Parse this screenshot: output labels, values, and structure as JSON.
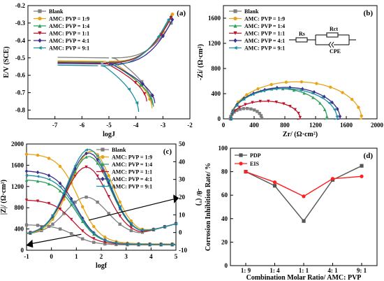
{
  "chart_data": [
    {
      "panel": "(a)",
      "type": "line",
      "xlabel": "logJ",
      "ylabel": "E/V (SCE)",
      "xlim": [
        -8,
        -2
      ],
      "ylim": [
        -0.85,
        -0.2
      ],
      "xticks": [
        "-7",
        "-6",
        "-5",
        "-4",
        "-3",
        "-2"
      ],
      "yticks": [
        "-0.2",
        "-0.3",
        "-0.4",
        "-0.5",
        "-0.6",
        "-0.7",
        "-0.8"
      ],
      "legend_position": "top-left",
      "series": [
        {
          "name": "Blank",
          "color": "#7f7f7f",
          "marker": "square",
          "Ecorr": -0.5,
          "minLogJ": -4.9,
          "anodic_end": [
            -2.7,
            -0.3
          ],
          "cathodic_end": [
            -3.4,
            -0.77
          ]
        },
        {
          "name": "AMC: PVP = 1:9",
          "color": "#e8a317",
          "marker": "circle",
          "Ecorr": -0.52,
          "minLogJ": -5.0,
          "anodic_end": [
            -2.65,
            -0.25
          ],
          "cathodic_end": [
            -3.4,
            -0.79
          ]
        },
        {
          "name": "AMC: PVP = 1:4",
          "color": "#2e9e5a",
          "marker": "triangle-up",
          "Ecorr": -0.525,
          "minLogJ": -5.1,
          "anodic_end": [
            -2.7,
            -0.26
          ],
          "cathodic_end": [
            -3.35,
            -0.78
          ]
        },
        {
          "name": "AMC: PVP = 1:1",
          "color": "#c0132a",
          "marker": "triangle-down",
          "Ecorr": -0.53,
          "minLogJ": -5.2,
          "anodic_end": [
            -2.7,
            -0.27
          ],
          "cathodic_end": [
            -3.6,
            -0.75
          ]
        },
        {
          "name": "AMC: PVP = 4:1",
          "color": "#3a2f8f",
          "marker": "diamond",
          "Ecorr": -0.535,
          "minLogJ": -5.0,
          "anodic_end": [
            -2.65,
            -0.28
          ],
          "cathodic_end": [
            -3.3,
            -0.76
          ]
        },
        {
          "name": "AMC: PVP = 9:1",
          "color": "#1f8fa0",
          "marker": "triangle-left",
          "Ecorr": -0.545,
          "minLogJ": -5.3,
          "anodic_end": [
            -2.8,
            -0.28
          ],
          "cathodic_end": [
            -3.9,
            -0.81
          ]
        }
      ]
    },
    {
      "panel": "(b)",
      "type": "line",
      "xlabel": "Zr/ (Ω·cm²)",
      "ylabel": "-Zi/ (Ω·cm²)",
      "xlim": [
        0,
        2000
      ],
      "ylim": [
        0,
        1800
      ],
      "xticks": [
        "0",
        "400",
        "800",
        "1200",
        "1600",
        "2000"
      ],
      "yticks": [
        "0",
        "400",
        "800",
        "1200",
        "1600"
      ],
      "legend_position": "top-left",
      "circuit_labels": [
        "Rs",
        "Rct",
        "CPE"
      ],
      "series": [
        {
          "name": "Blank",
          "color": "#7f7f7f",
          "marker": "square",
          "Rs": 90,
          "Rend": 500,
          "peak": 165
        },
        {
          "name": "AMC: PVP = 1:9",
          "color": "#e8a317",
          "marker": "circle",
          "Rs": 100,
          "Rend": 1800,
          "peak": 590
        },
        {
          "name": "AMC: PVP = 1:4",
          "color": "#2e9e5a",
          "marker": "triangle-up",
          "Rs": 100,
          "Rend": 1350,
          "peak": 480
        },
        {
          "name": "AMC: PVP = 1:1",
          "color": "#c0132a",
          "marker": "triangle-down",
          "Rs": 100,
          "Rend": 1000,
          "peak": 280
        },
        {
          "name": "AMC: PVP = 4:1",
          "color": "#3a2f8f",
          "marker": "diamond",
          "Rs": 100,
          "Rend": 1520,
          "peak": 500
        },
        {
          "name": "AMC: PVP = 9:1",
          "color": "#1f8fa0",
          "marker": "triangle-left",
          "Rs": 100,
          "Rend": 1480,
          "peak": 480
        }
      ]
    },
    {
      "panel": "(c)",
      "type": "line",
      "xlabel": "logf",
      "ylabel": "|Z|/ (Ω·cm²)",
      "ylabel_right": "-θ/ (°)",
      "xlim": [
        -1,
        5
      ],
      "ylim": [
        0,
        2000
      ],
      "ylim_right": [
        -10,
        50
      ],
      "xticks": [
        "-1",
        "0",
        "1",
        "2",
        "3",
        "4",
        "5"
      ],
      "yticks": [
        "0",
        "400",
        "800",
        "1200",
        "1600",
        "2000"
      ],
      "yticks_right": [
        "-10",
        "0",
        "10",
        "20",
        "30",
        "40",
        "50"
      ],
      "legend_position": "top-right",
      "series": [
        {
          "name": "Blank",
          "color": "#7f7f7f",
          "marker": "square",
          "Zlow": 480,
          "Zhigh": 100,
          "phasePeak": 20,
          "peakLogf": 1.4
        },
        {
          "name": "AMC: PVP = 1:9",
          "color": "#e8a317",
          "marker": "circle",
          "Zlow": 1820,
          "Zhigh": 120,
          "phasePeak": 46,
          "peakLogf": 1.6
        },
        {
          "name": "AMC: PVP = 1:4",
          "color": "#2e9e5a",
          "marker": "triangle-up",
          "Zlow": 1330,
          "Zhigh": 110,
          "phasePeak": 43,
          "peakLogf": 1.5
        },
        {
          "name": "AMC: PVP = 1:1",
          "color": "#c0132a",
          "marker": "triangle-down",
          "Zlow": 950,
          "Zhigh": 110,
          "phasePeak": 37,
          "peakLogf": 1.4
        },
        {
          "name": "AMC: PVP = 4:1",
          "color": "#3a2f8f",
          "marker": "diamond",
          "Zlow": 1500,
          "Zhigh": 110,
          "phasePeak": 45,
          "peakLogf": 1.5
        },
        {
          "name": "AMC: PVP = 9:1",
          "color": "#1f8fa0",
          "marker": "triangle-left",
          "Zlow": 1420,
          "Zhigh": 110,
          "phasePeak": 47,
          "peakLogf": 1.5
        }
      ]
    },
    {
      "panel": "(d)",
      "type": "line",
      "xlabel": "Combination Molar Ratio/ AMC: PVP",
      "ylabel": "Corrosion Inhibition Rate/ %",
      "categories": [
        "1: 9",
        "1: 4",
        "1: 1",
        "4: 1",
        "9: 1"
      ],
      "ylim": [
        0,
        100
      ],
      "yticks": [
        "0",
        "20",
        "40",
        "60",
        "80",
        "100"
      ],
      "legend_position": "top-left",
      "series": [
        {
          "name": "PDP",
          "color": "#555555",
          "marker": "square",
          "values": [
            80,
            68,
            38,
            73,
            85
          ]
        },
        {
          "name": "EIS",
          "color": "#ff2020",
          "marker": "circle",
          "values": [
            80,
            71,
            59,
            74,
            76
          ]
        }
      ]
    }
  ]
}
